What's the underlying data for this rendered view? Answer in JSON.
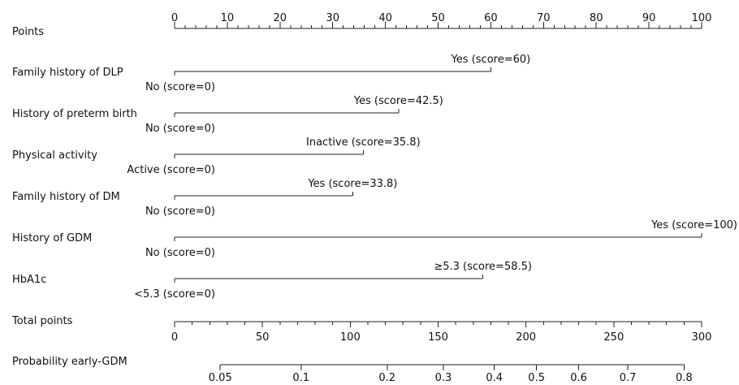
{
  "chart_data": {
    "type": "nomogram",
    "scales": [
      {
        "id": "points",
        "label": "Points",
        "range": [
          0,
          100
        ],
        "major_ticks": [
          0,
          10,
          20,
          30,
          40,
          50,
          60,
          70,
          80,
          90,
          100
        ],
        "tick_labels": [
          "0",
          "10",
          "20",
          "30",
          "40",
          "50",
          "60",
          "70",
          "80",
          "90",
          "100"
        ],
        "minor_step": 2
      },
      {
        "id": "total_points",
        "label": "Total points",
        "range": [
          0,
          300
        ],
        "major_ticks": [
          0,
          50,
          100,
          150,
          200,
          250,
          300
        ],
        "tick_labels": [
          "0",
          "50",
          "100",
          "150",
          "200",
          "250",
          "300"
        ],
        "minor_step": 10
      },
      {
        "id": "probability",
        "label": "Probability early-GDM",
        "ticks": [
          {
            "value": 0.05,
            "label": "0.05",
            "total_points": 26
          },
          {
            "value": 0.1,
            "label": "0.1",
            "total_points": 72
          },
          {
            "value": 0.2,
            "label": "0.2",
            "total_points": 121
          },
          {
            "value": 0.3,
            "label": "0.3",
            "total_points": 153
          },
          {
            "value": 0.4,
            "label": "0.4",
            "total_points": 182
          },
          {
            "value": 0.5,
            "label": "0.5",
            "total_points": 206
          },
          {
            "value": 0.6,
            "label": "0.6",
            "total_points": 230
          },
          {
            "value": 0.7,
            "label": "0.7",
            "total_points": 258
          },
          {
            "value": 0.8,
            "label": "0.8",
            "total_points": 290
          }
        ]
      }
    ],
    "variables": [
      {
        "name": "Family history of DLP",
        "low_label": "No (score=0)",
        "high_label": "Yes (score=60)",
        "low_score": 0,
        "high_score": 60
      },
      {
        "name": "History of preterm birth",
        "low_label": "No (score=0)",
        "high_label": "Yes (score=42.5)",
        "low_score": 0,
        "high_score": 42.5
      },
      {
        "name": "Physical activity",
        "low_label": "Active (score=0)",
        "high_label": "Inactive (score=35.8)",
        "low_score": 0,
        "high_score": 35.8
      },
      {
        "name": "Family history of DM",
        "low_label": "No (score=0)",
        "high_label": "Yes (score=33.8)",
        "low_score": 0,
        "high_score": 33.8
      },
      {
        "name": "History of GDM",
        "low_label": "No (score=0)",
        "high_label": "Yes (score=100)",
        "low_score": 0,
        "high_score": 100
      },
      {
        "name": "HbA1c",
        "low_label": "<5.3 (score=0)",
        "high_label": "≥5.3 (score=58.5)",
        "low_score": 0,
        "high_score": 58.5
      }
    ]
  }
}
